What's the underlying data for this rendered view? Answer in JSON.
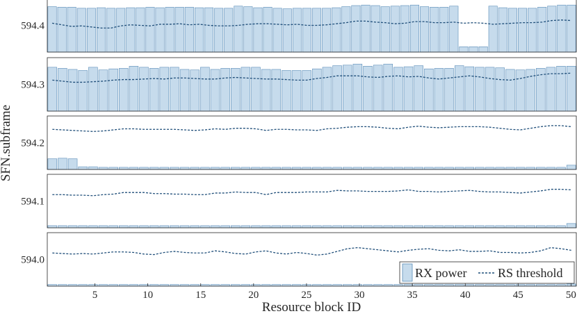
{
  "chart_data": {
    "type": "bar",
    "xlabel": "Resource block ID",
    "ylabel": "SFN.subframe",
    "x_ticks": [
      5,
      10,
      15,
      20,
      25,
      30,
      35,
      40,
      45,
      50
    ],
    "x_range": [
      0.5,
      50.5
    ],
    "legend": {
      "entries": [
        "RX power",
        "RS threshold"
      ],
      "placement": "bottom-right"
    },
    "colors": {
      "bar_fill": "#c6dbec",
      "bar_edge": "#5b8db8",
      "line": "#1f4e79",
      "frame": "#262626"
    },
    "panels": [
      {
        "label": "594.4",
        "bars": [
          0.85,
          0.84,
          0.84,
          0.82,
          0.82,
          0.83,
          0.82,
          0.82,
          0.83,
          0.83,
          0.84,
          0.83,
          0.84,
          0.84,
          0.84,
          0.83,
          0.83,
          0.82,
          0.82,
          0.86,
          0.85,
          0.83,
          0.84,
          0.82,
          0.81,
          0.82,
          0.82,
          0.82,
          0.82,
          0.83,
          0.85,
          0.87,
          0.88,
          0.87,
          0.85,
          0.86,
          0.87,
          0.88,
          0.85,
          0.84,
          0.84,
          0.86,
          0.1,
          0.1,
          0.1,
          0.86,
          0.83,
          0.82,
          0.82,
          0.82,
          0.84,
          0.86,
          0.88,
          0.88
        ],
        "threshold": [
          0.54,
          0.51,
          0.48,
          0.49,
          0.47,
          0.45,
          0.45,
          0.49,
          0.51,
          0.5,
          0.49,
          0.52,
          0.52,
          0.53,
          0.51,
          0.52,
          0.5,
          0.49,
          0.49,
          0.5,
          0.52,
          0.53,
          0.53,
          0.52,
          0.51,
          0.52,
          0.5,
          0.5,
          0.51,
          0.53,
          0.55,
          0.58,
          0.58,
          0.56,
          0.55,
          0.53,
          0.54,
          0.57,
          0.57,
          0.55,
          0.55,
          0.56,
          0.54,
          0.55,
          0.54,
          0.52,
          0.53,
          0.54,
          0.55,
          0.55,
          0.56,
          0.59,
          0.6,
          0.59
        ]
      },
      {
        "label": "594.3",
        "bars": [
          0.82,
          0.8,
          0.78,
          0.76,
          0.82,
          0.77,
          0.79,
          0.8,
          0.84,
          0.82,
          0.8,
          0.82,
          0.82,
          0.78,
          0.77,
          0.82,
          0.78,
          0.8,
          0.8,
          0.82,
          0.82,
          0.78,
          0.78,
          0.76,
          0.76,
          0.76,
          0.79,
          0.82,
          0.85,
          0.86,
          0.88,
          0.84,
          0.86,
          0.88,
          0.82,
          0.83,
          0.85,
          0.79,
          0.8,
          0.8,
          0.85,
          0.83,
          0.82,
          0.82,
          0.81,
          0.78,
          0.77,
          0.78,
          0.8,
          0.82,
          0.84,
          0.84
        ],
        "threshold": [
          0.58,
          0.56,
          0.54,
          0.54,
          0.55,
          0.56,
          0.58,
          0.59,
          0.59,
          0.6,
          0.61,
          0.6,
          0.62,
          0.62,
          0.61,
          0.6,
          0.6,
          0.62,
          0.63,
          0.62,
          0.61,
          0.6,
          0.6,
          0.59,
          0.58,
          0.58,
          0.61,
          0.63,
          0.66,
          0.66,
          0.66,
          0.64,
          0.63,
          0.65,
          0.66,
          0.64,
          0.65,
          0.62,
          0.6,
          0.62,
          0.64,
          0.66,
          0.64,
          0.61,
          0.59,
          0.58,
          0.61,
          0.65,
          0.68,
          0.7,
          0.7,
          0.71
        ]
      },
      {
        "label": "594.2",
        "bars": [
          0.2,
          0.21,
          0.2,
          0.05,
          0.05,
          0.04,
          0.04,
          0.04,
          0.04,
          0.04,
          0.04,
          0.04,
          0.04,
          0.04,
          0.04,
          0.04,
          0.04,
          0.04,
          0.04,
          0.04,
          0.04,
          0.04,
          0.04,
          0.04,
          0.04,
          0.04,
          0.04,
          0.04,
          0.04,
          0.04,
          0.04,
          0.04,
          0.04,
          0.04,
          0.04,
          0.04,
          0.04,
          0.04,
          0.04,
          0.04,
          0.04,
          0.04,
          0.04,
          0.04,
          0.04,
          0.04,
          0.04,
          0.04,
          0.04,
          0.04,
          0.04,
          0.08
        ],
        "threshold": [
          0.75,
          0.74,
          0.73,
          0.72,
          0.71,
          0.72,
          0.74,
          0.76,
          0.76,
          0.75,
          0.75,
          0.75,
          0.75,
          0.74,
          0.73,
          0.74,
          0.76,
          0.75,
          0.77,
          0.77,
          0.76,
          0.73,
          0.75,
          0.75,
          0.74,
          0.74,
          0.73,
          0.76,
          0.77,
          0.79,
          0.8,
          0.8,
          0.79,
          0.77,
          0.76,
          0.79,
          0.81,
          0.79,
          0.78,
          0.79,
          0.8,
          0.8,
          0.8,
          0.79,
          0.77,
          0.75,
          0.74,
          0.77,
          0.8,
          0.82,
          0.82,
          0.8
        ]
      },
      {
        "label": "594.1",
        "bars": [
          0.04,
          0.04,
          0.04,
          0.04,
          0.04,
          0.04,
          0.04,
          0.04,
          0.04,
          0.04,
          0.04,
          0.04,
          0.04,
          0.04,
          0.04,
          0.04,
          0.04,
          0.04,
          0.04,
          0.04,
          0.04,
          0.04,
          0.04,
          0.04,
          0.04,
          0.04,
          0.04,
          0.04,
          0.04,
          0.04,
          0.04,
          0.04,
          0.04,
          0.04,
          0.04,
          0.04,
          0.04,
          0.04,
          0.04,
          0.04,
          0.04,
          0.04,
          0.04,
          0.04,
          0.04,
          0.04,
          0.04,
          0.04,
          0.04,
          0.04,
          0.04,
          0.08
        ],
        "threshold": [
          0.62,
          0.62,
          0.61,
          0.61,
          0.6,
          0.62,
          0.63,
          0.66,
          0.66,
          0.66,
          0.64,
          0.64,
          0.63,
          0.63,
          0.62,
          0.62,
          0.65,
          0.65,
          0.67,
          0.66,
          0.66,
          0.62,
          0.66,
          0.66,
          0.66,
          0.67,
          0.67,
          0.67,
          0.7,
          0.69,
          0.69,
          0.68,
          0.68,
          0.68,
          0.69,
          0.71,
          0.68,
          0.68,
          0.67,
          0.68,
          0.69,
          0.7,
          0.68,
          0.67,
          0.67,
          0.66,
          0.65,
          0.67,
          0.69,
          0.72,
          0.72,
          0.71
        ]
      },
      {
        "label": "594.0",
        "bars": [
          0.03,
          0.03,
          0.03,
          0.03,
          0.03,
          0.03,
          0.03,
          0.03,
          0.03,
          0.03,
          0.03,
          0.03,
          0.03,
          0.03,
          0.03,
          0.03,
          0.03,
          0.03,
          0.03,
          0.03,
          0.03,
          0.03,
          0.03,
          0.03,
          0.03,
          0.03,
          0.03,
          0.03,
          0.03,
          0.03,
          0.03,
          0.03,
          0.03,
          0.03,
          0.03,
          0.03,
          0.03,
          0.03,
          0.03,
          0.03,
          0.03,
          0.03,
          0.03,
          0.03,
          0.03,
          0.03,
          0.03,
          0.03,
          0.03,
          0.03,
          0.03,
          0.04
        ],
        "threshold": [
          0.62,
          0.61,
          0.6,
          0.61,
          0.6,
          0.62,
          0.64,
          0.64,
          0.63,
          0.6,
          0.59,
          0.63,
          0.65,
          0.63,
          0.62,
          0.62,
          0.66,
          0.64,
          0.61,
          0.6,
          0.64,
          0.66,
          0.62,
          0.6,
          0.63,
          0.61,
          0.58,
          0.6,
          0.65,
          0.7,
          0.72,
          0.7,
          0.68,
          0.66,
          0.64,
          0.67,
          0.69,
          0.7,
          0.67,
          0.66,
          0.68,
          0.65,
          0.65,
          0.66,
          0.63,
          0.63,
          0.62,
          0.63,
          0.66,
          0.72,
          0.7,
          0.67
        ]
      }
    ]
  }
}
